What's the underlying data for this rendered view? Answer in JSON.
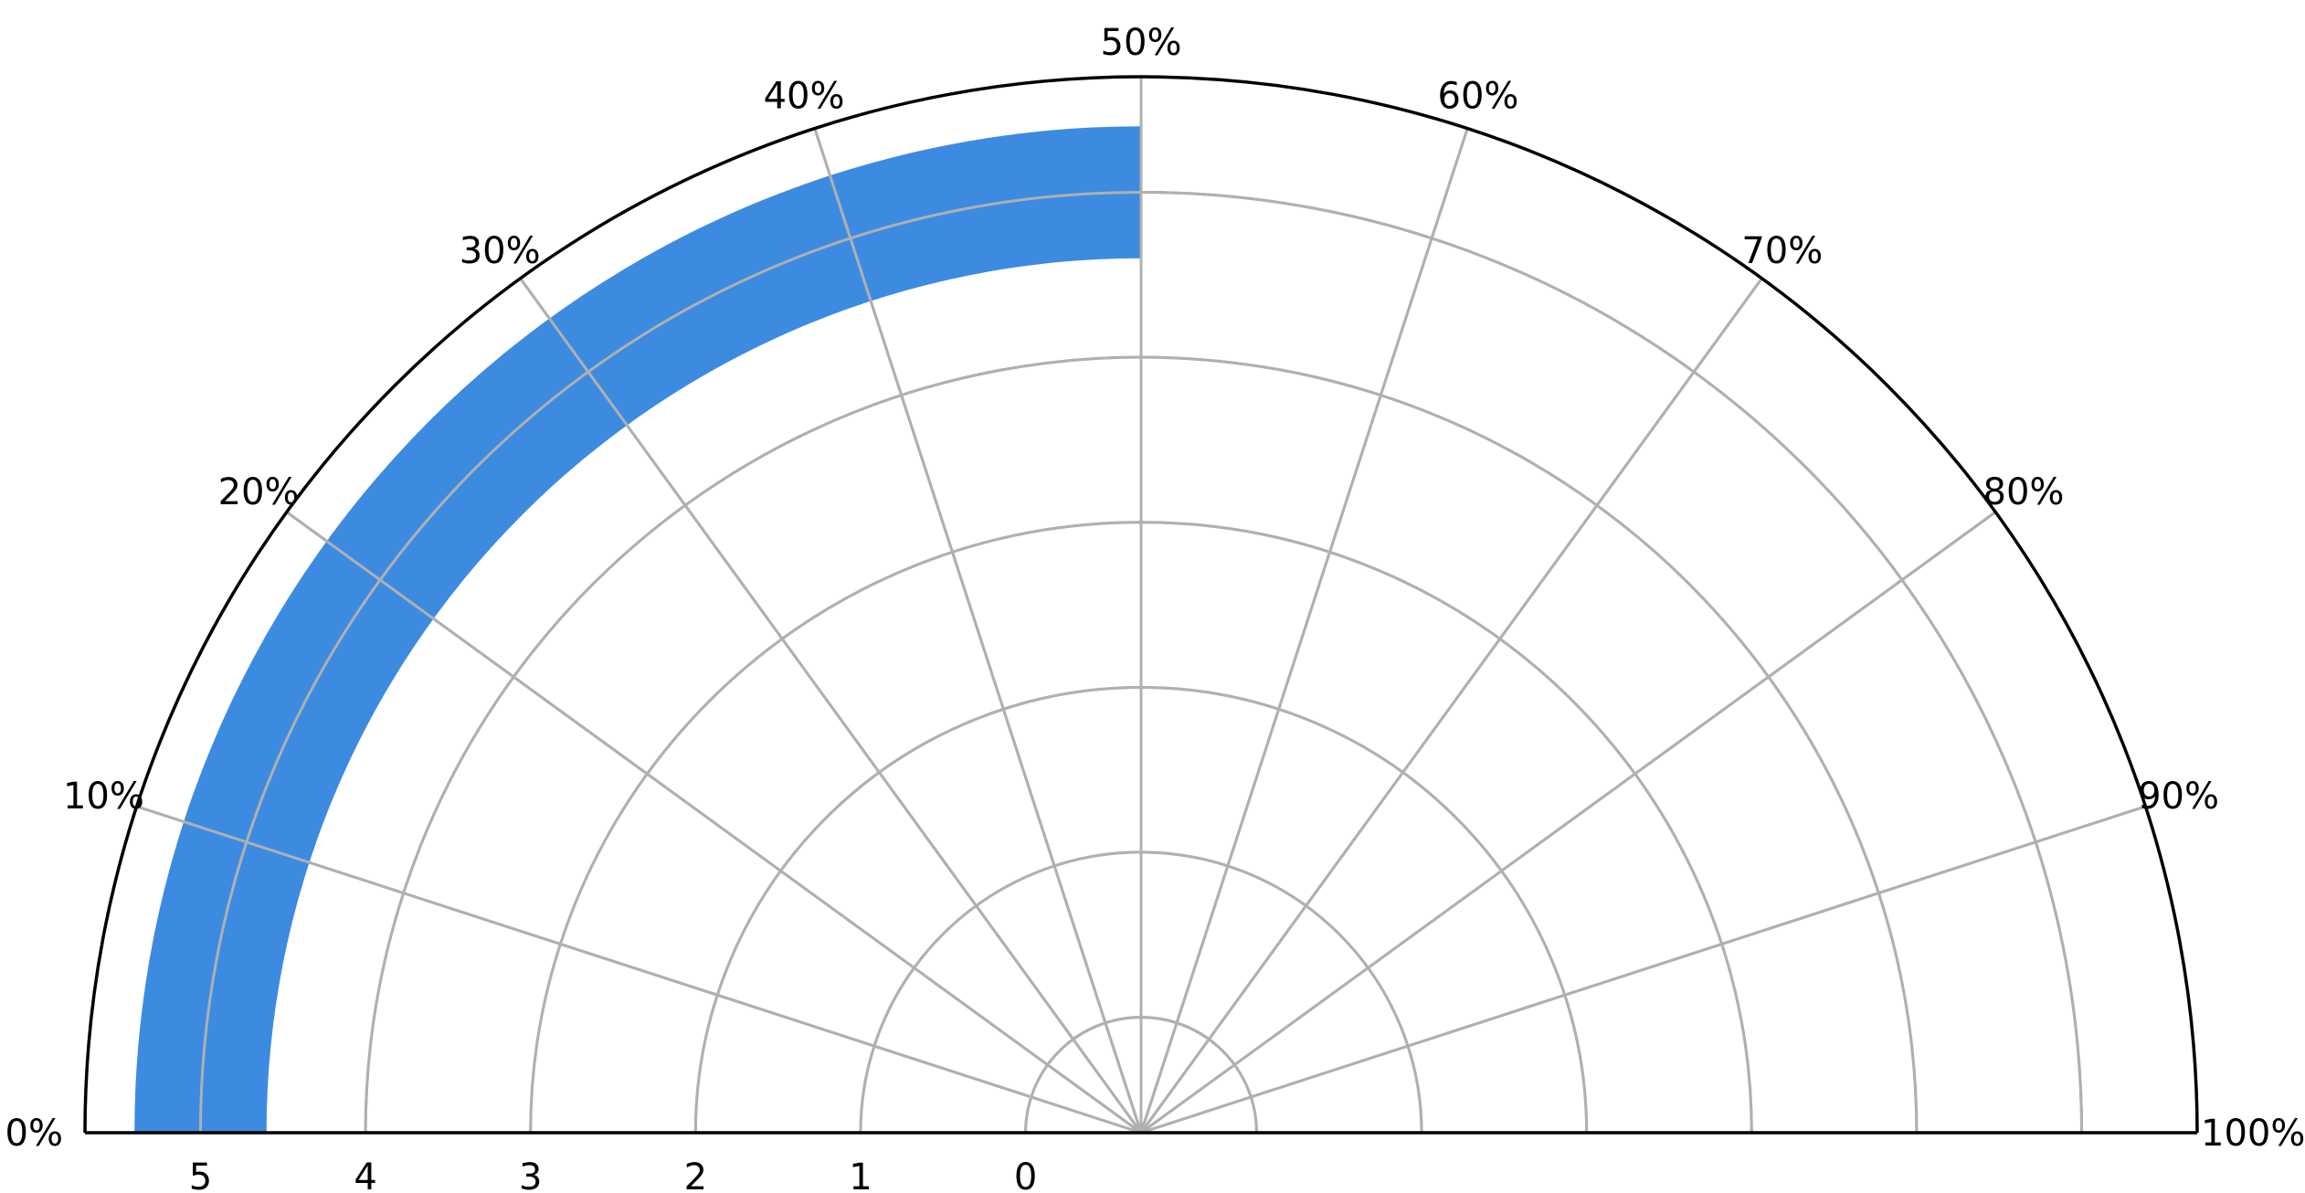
{
  "chart_data": {
    "type": "polar-bar",
    "subtype": "half-donut-gauge",
    "angle_ticks": [
      "0%",
      "10%",
      "20%",
      "30%",
      "40%",
      "50%",
      "60%",
      "70%",
      "80%",
      "90%",
      "100%"
    ],
    "angle_range": [
      0,
      100
    ],
    "radial_ticks": [
      "0",
      "1",
      "2",
      "3",
      "4",
      "5"
    ],
    "radial_tick_values": [
      0,
      1,
      2,
      3,
      4,
      5
    ],
    "radial_range": [
      -0.7,
      5.7
    ],
    "bars": [
      {
        "start_percent": 0,
        "end_percent": 50,
        "radius_inner": 4.6,
        "radius_outer": 5.4,
        "color": "#3d8be0"
      }
    ],
    "grid": true
  }
}
